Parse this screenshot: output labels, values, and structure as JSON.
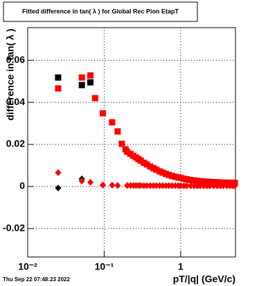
{
  "chart_data": {
    "type": "scatter",
    "title": "Fitted difference in tan( λ ) for Global Rec Pion EtapT",
    "y_label": "difference in tan( λ )",
    "x_label": "pT/|q| (GeV/c)",
    "timestamp": "Thu Sep 22 07:48:23 2022",
    "xlog": true,
    "grid": true,
    "xlim": [
      0.01,
      5.2
    ],
    "ylim": [
      -0.0335,
      0.0755
    ],
    "xticks": [
      {
        "value": 0.01,
        "label": "10⁻²"
      },
      {
        "value": 0.1,
        "label": "10⁻¹"
      },
      1
    ],
    "yticks": [
      -0.02,
      0,
      0.02,
      0.04,
      0.06
    ],
    "series": [
      {
        "marker": "square",
        "color": "#000000",
        "x": [
          0.025,
          0.051,
          0.066
        ],
        "values": [
          0.0518,
          0.0482,
          0.0495
        ]
      },
      {
        "marker": "square",
        "color": "#ff0000",
        "x": [
          0.025,
          0.051,
          0.066,
          0.076,
          0.096,
          0.127,
          0.15,
          0.17,
          0.19,
          0.2,
          0.22,
          0.24,
          0.26,
          0.28,
          0.3,
          0.33,
          0.36,
          0.4,
          0.44,
          0.48,
          0.53,
          0.58,
          0.64,
          0.7,
          0.77,
          0.85,
          0.93,
          1.0,
          1.1,
          1.2,
          1.35,
          1.5,
          1.65,
          1.8,
          2.0,
          2.2,
          2.4,
          2.7,
          3.0,
          3.3,
          3.6,
          4.0,
          4.4,
          4.8,
          5.1
        ],
        "values": [
          0.0466,
          0.0518,
          0.0528,
          0.042,
          0.0348,
          0.0305,
          0.0262,
          0.0203,
          0.0177,
          0.0165,
          0.0155,
          0.0146,
          0.0138,
          0.013,
          0.0123,
          0.0113,
          0.0105,
          0.0095,
          0.0087,
          0.008,
          0.0072,
          0.0066,
          0.006,
          0.0055,
          0.005,
          0.0046,
          0.0043,
          0.0041,
          0.0037,
          0.0034,
          0.0031,
          0.0029,
          0.0027,
          0.0025,
          0.0024,
          0.0023,
          0.0022,
          0.0021,
          0.002,
          0.0019,
          0.0019,
          0.0018,
          0.0018,
          0.0018,
          0.0017
        ]
      },
      {
        "marker": "diamond",
        "color": "#000000",
        "x": [
          0.025,
          0.051
        ],
        "values": [
          -0.0007,
          0.0036
        ]
      },
      {
        "marker": "diamond",
        "color": "#ff0000",
        "x": [
          0.025,
          0.051,
          0.066,
          0.096,
          0.127,
          0.15,
          0.2,
          0.22,
          0.24,
          0.26,
          0.28,
          0.3,
          0.33,
          0.36,
          0.4,
          0.44,
          0.48,
          0.53,
          0.58,
          0.64,
          0.7,
          0.77,
          0.85,
          0.93,
          1.0,
          1.1,
          1.2,
          1.35,
          1.5,
          1.65,
          1.8,
          2.0,
          2.2,
          2.4,
          2.7,
          3.0,
          3.3,
          3.6,
          4.0,
          4.4,
          4.8,
          5.1
        ],
        "values": [
          0.0066,
          0.0026,
          0.002,
          0.0007,
          0.0006,
          0.0005,
          0.0005,
          0.0005,
          0.0005,
          0.0005,
          0.0005,
          0.0005,
          0.0004,
          0.0004,
          0.0004,
          0.0004,
          0.0004,
          0.0004,
          0.0004,
          0.0004,
          0.0004,
          0.0004,
          0.0004,
          0.0004,
          0.0003,
          0.0003,
          0.0003,
          0.0003,
          0.0003,
          0.0003,
          0.0003,
          0.0003,
          0.0003,
          0.0003,
          0.0003,
          0.0003,
          0.0003,
          0.0003,
          0.0003,
          0.0003,
          0.0003,
          0.0003
        ]
      }
    ]
  }
}
